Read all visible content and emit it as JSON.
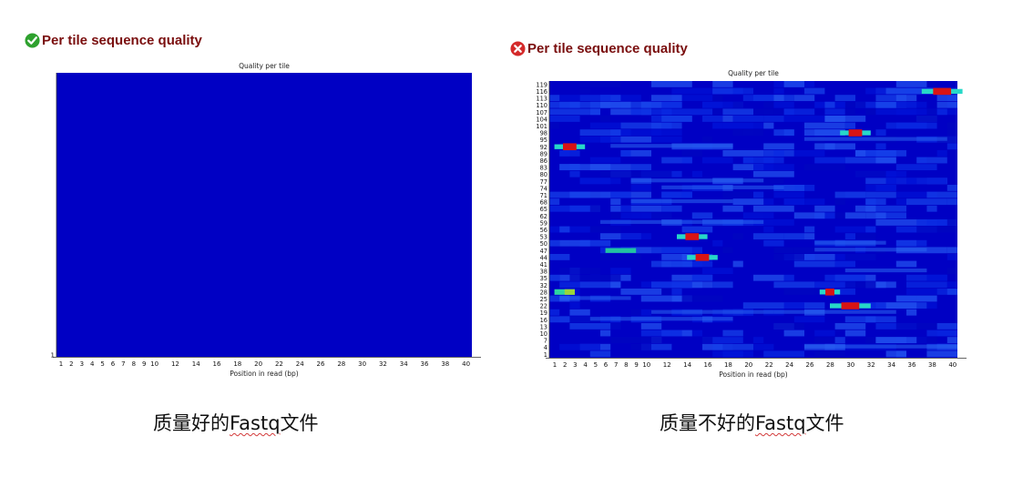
{
  "left": {
    "heading": "Per tile sequence quality",
    "status_icon": "check-icon",
    "caption_pre": "质量好的",
    "caption_word": "Fastq",
    "caption_post": "文件"
  },
  "right": {
    "heading": "Per tile sequence quality",
    "status_icon": "cross-icon",
    "caption_pre": "质量不好的",
    "caption_word": "Fastq",
    "caption_post": "文件"
  },
  "colors": {
    "heading": "#7a0e0e",
    "heatmap_base": "#0000c4",
    "check_green": "#2ea12e",
    "cross_red": "#d42a2a",
    "squiggle": "#d23a3a"
  },
  "chart_data": [
    {
      "type": "heatmap",
      "title": "Quality per tile",
      "xlabel": "Position in read (bp)",
      "ylabel": "",
      "x_ticks": [
        "1",
        "2",
        "3",
        "4",
        "5",
        "6",
        "7",
        "8",
        "9",
        "10",
        "12",
        "14",
        "16",
        "18",
        "20",
        "22",
        "24",
        "26",
        "28",
        "30",
        "32",
        "34",
        "36",
        "38",
        "40"
      ],
      "y_ticks": [
        "1"
      ],
      "cells": []
    },
    {
      "type": "heatmap",
      "title": "Quality per tile",
      "xlabel": "Position in read (bp)",
      "ylabel": "",
      "x_ticks": [
        "1",
        "2",
        "3",
        "4",
        "5",
        "6",
        "7",
        "8",
        "9",
        "10",
        "12",
        "14",
        "16",
        "18",
        "20",
        "22",
        "24",
        "26",
        "28",
        "30",
        "32",
        "34",
        "36",
        "38",
        "40"
      ],
      "y_ticks": [
        "1",
        "4",
        "7",
        "10",
        "13",
        "16",
        "19",
        "22",
        "25",
        "28",
        "32",
        "35",
        "38",
        "41",
        "44",
        "47",
        "50",
        "53",
        "56",
        "59",
        "62",
        "65",
        "68",
        "71",
        "74",
        "77",
        "80",
        "83",
        "86",
        "89",
        "92",
        "95",
        "98",
        "101",
        "104",
        "107",
        "110",
        "113",
        "116",
        "119"
      ],
      "cells": [
        {
          "tile": "116",
          "x_from": 37,
          "x_to": 40,
          "level": "high"
        },
        {
          "tile": "98",
          "x_from": 29,
          "x_to": 31,
          "level": "high"
        },
        {
          "tile": "92",
          "x_from": 1,
          "x_to": 3,
          "level": "high"
        },
        {
          "tile": "53",
          "x_from": 13,
          "x_to": 15,
          "level": "high"
        },
        {
          "tile": "47",
          "x_from": 6,
          "x_to": 8,
          "level": "low"
        },
        {
          "tile": "44",
          "x_from": 14,
          "x_to": 16,
          "level": "high"
        },
        {
          "tile": "28",
          "x_from": 1,
          "x_to": 2,
          "level": "medium"
        },
        {
          "tile": "28",
          "x_from": 27,
          "x_to": 28,
          "level": "high"
        },
        {
          "tile": "22",
          "x_from": 28,
          "x_to": 31,
          "level": "high"
        }
      ]
    }
  ]
}
